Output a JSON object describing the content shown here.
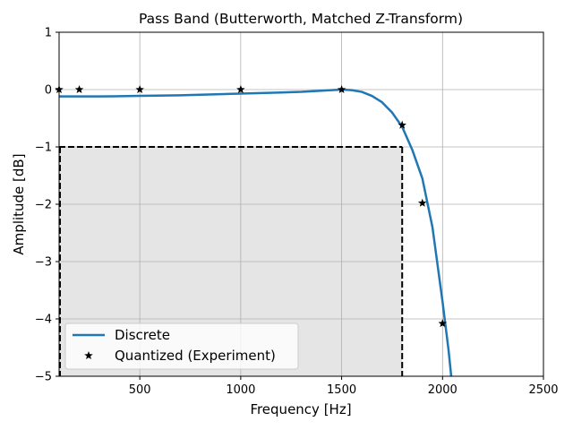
{
  "chart_data": {
    "type": "line",
    "title": "Pass Band (Butterworth, Matched Z-Transform)",
    "xlabel": "Frequency [Hz]",
    "ylabel": "Amplitude [dB]",
    "xlim": [
      100,
      2500
    ],
    "ylim": [
      -5,
      1
    ],
    "x_ticks": [
      500,
      1000,
      1500,
      2000,
      2500
    ],
    "y_ticks": [
      -5,
      -4,
      -3,
      -2,
      -1,
      0,
      1
    ],
    "grid": true,
    "legend_placement": "lower-left",
    "colors": {
      "discrete": "#1f77b4",
      "quantized": "#000000",
      "region_fill": "#e5e5e5",
      "grid": "#b0b0b0"
    },
    "series": [
      {
        "name": "Discrete",
        "style": "line",
        "x": [
          100,
          300,
          500,
          700,
          900,
          1100,
          1200,
          1300,
          1400,
          1450,
          1500,
          1550,
          1600,
          1650,
          1700,
          1750,
          1800,
          1850,
          1900,
          1950,
          2000,
          2030,
          2043
        ],
        "y": [
          -0.12,
          -0.12,
          -0.11,
          -0.1,
          -0.08,
          -0.06,
          -0.05,
          -0.04,
          -0.02,
          -0.01,
          0.0,
          -0.01,
          -0.04,
          -0.11,
          -0.22,
          -0.4,
          -0.65,
          -1.05,
          -1.55,
          -2.4,
          -3.7,
          -4.55,
          -5.0
        ]
      },
      {
        "name": "Quantized (Experiment)",
        "style": "markers",
        "marker": "star",
        "x": [
          100,
          200,
          500,
          1000,
          1500,
          1800,
          1900,
          2000
        ],
        "y": [
          0,
          0,
          0,
          0,
          0,
          -0.62,
          -1.98,
          -4.08
        ]
      }
    ],
    "shaded_region": {
      "x": [
        100,
        1800
      ],
      "y": [
        -5,
        -1
      ],
      "edge": "dashed"
    }
  }
}
